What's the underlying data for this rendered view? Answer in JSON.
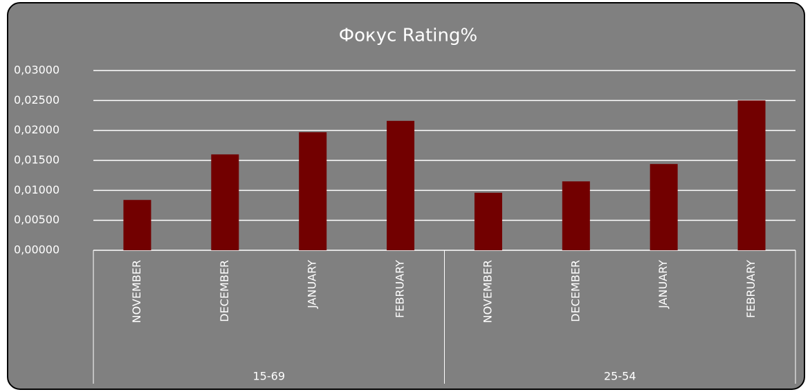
{
  "chart_data": {
    "type": "bar",
    "title": "Фокус Rating%",
    "color": "#720000",
    "grid": true,
    "ylim": [
      0,
      0.03
    ],
    "yticks": [
      {
        "value": 0,
        "label": "0,00000"
      },
      {
        "value": 0.005,
        "label": "0,00500"
      },
      {
        "value": 0.01,
        "label": "0,01000"
      },
      {
        "value": 0.015,
        "label": "0,01500"
      },
      {
        "value": 0.02,
        "label": "0,02000"
      },
      {
        "value": 0.025,
        "label": "0,02500"
      },
      {
        "value": 0.03,
        "label": "0,03000"
      }
    ],
    "groups": [
      {
        "name": "15-69",
        "categories": [
          "NOVEMBER",
          "DECEMBER",
          "JANUARY",
          "FEBRUARY"
        ],
        "values": [
          0.0084,
          0.016,
          0.0197,
          0.0216
        ]
      },
      {
        "name": "25-54",
        "categories": [
          "NOVEMBER",
          "DECEMBER",
          "JANUARY",
          "FEBRUARY"
        ],
        "values": [
          0.0096,
          0.0115,
          0.0144,
          0.025
        ]
      }
    ]
  }
}
